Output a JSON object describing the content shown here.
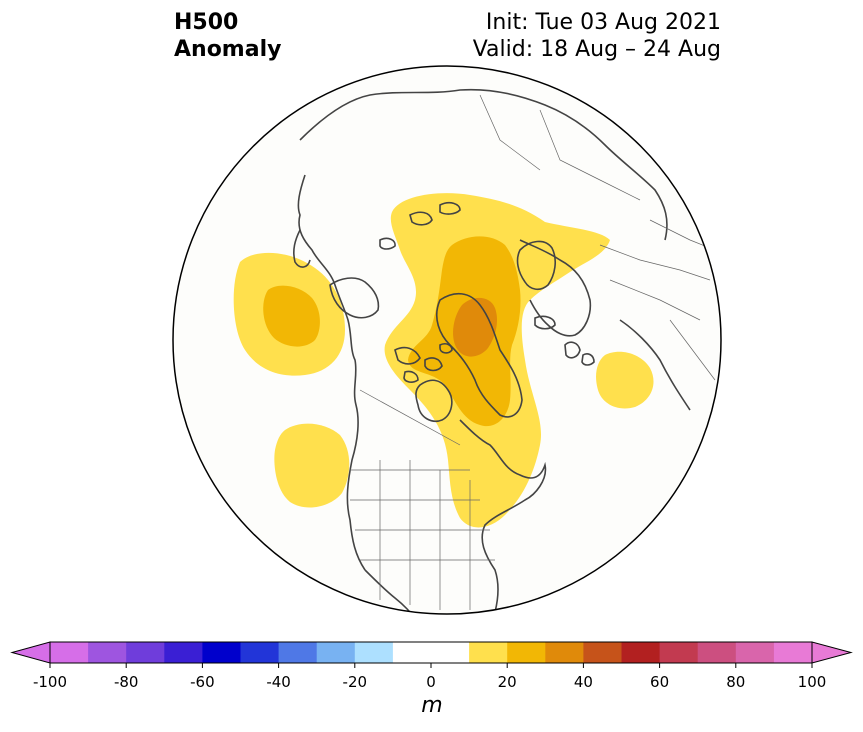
{
  "title": {
    "line1": "H500",
    "line2": "Anomaly",
    "init": "Init: Tue 03 Aug 2021",
    "valid": "Valid: 18 Aug – 24 Aug"
  },
  "colorbar": {
    "levels": [
      -100,
      -90,
      -80,
      -70,
      -60,
      -50,
      -40,
      -30,
      -20,
      -10,
      10,
      20,
      30,
      40,
      50,
      60,
      70,
      80,
      90,
      100
    ],
    "colors": [
      "#d66ee8",
      "#9e55e0",
      "#6f3ddb",
      "#3a1fd4",
      "#0000cc",
      "#2235d8",
      "#4f78e6",
      "#78b2f2",
      "#ade0ff",
      "#ffffff",
      "#ffffff",
      "#ffe04d",
      "#f2b705",
      "#e08a0a",
      "#c6531a",
      "#b22020",
      "#c23a50",
      "#cc4f80",
      "#d965ab",
      "#e87ad6"
    ],
    "under_color": "#d66ee8",
    "over_color": "#e87ad6",
    "tick_labels": [
      "-100",
      "-80",
      "-60",
      "-40",
      "-20",
      "0",
      "20",
      "40",
      "60",
      "80",
      "100"
    ],
    "units": "m"
  },
  "map": {
    "projection": "north-polar-stereographic",
    "center": "North Pole",
    "anomaly_areas": [
      {
        "region": "Greenland / Arctic ridge",
        "levels": [
          10,
          20,
          30
        ]
      },
      {
        "region": "Northeast Pacific / Gulf of Alaska",
        "levels": [
          10,
          20
        ]
      },
      {
        "region": "Central Pacific",
        "levels": [
          10
        ]
      },
      {
        "region": "Western Europe / Atlantic",
        "levels": [
          10
        ]
      },
      {
        "region": "Northeast North America",
        "levels": [
          10,
          20
        ]
      }
    ]
  }
}
